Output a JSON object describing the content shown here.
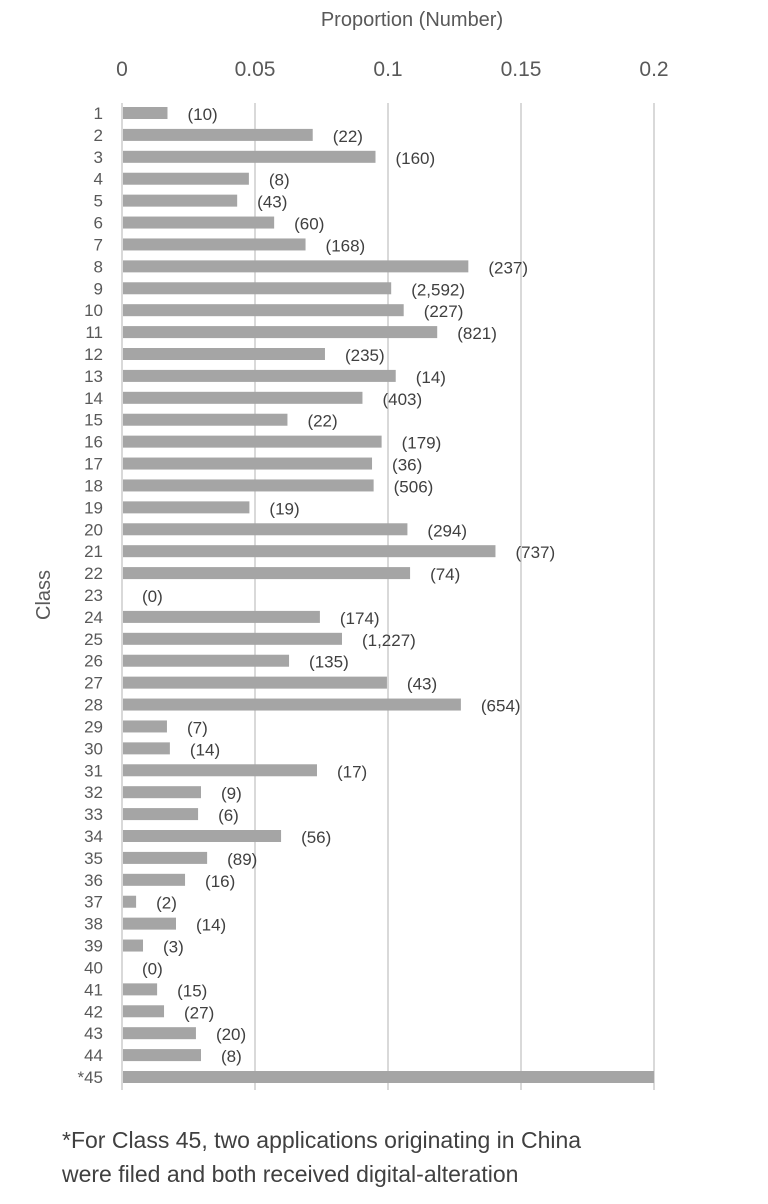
{
  "chart_data": {
    "type": "bar",
    "orientation": "horizontal",
    "title": "",
    "xlabel": "Proportion (Number)",
    "ylabel": "Class",
    "xlim": [
      0,
      0.2
    ],
    "xticks": [
      0,
      0.05,
      0.1,
      0.15,
      0.2
    ],
    "xtick_labels": [
      "0",
      "0.05",
      "0.1",
      "0.15",
      "0.2"
    ],
    "x_axis_position": "top",
    "grid": "vertical",
    "bar_color": "#a5a5a5",
    "categories": [
      "1",
      "2",
      "3",
      "4",
      "5",
      "6",
      "7",
      "8",
      "9",
      "10",
      "11",
      "12",
      "13",
      "14",
      "15",
      "16",
      "17",
      "18",
      "19",
      "20",
      "21",
      "22",
      "23",
      "24",
      "25",
      "26",
      "27",
      "28",
      "29",
      "30",
      "31",
      "32",
      "33",
      "34",
      "35",
      "36",
      "37",
      "38",
      "39",
      "40",
      "41",
      "42",
      "43",
      "44",
      "*45"
    ],
    "values": [
      0.0171,
      0.0717,
      0.0953,
      0.0477,
      0.0433,
      0.0572,
      0.069,
      0.1302,
      0.1012,
      0.1059,
      0.1185,
      0.0763,
      0.1029,
      0.0904,
      0.0622,
      0.0976,
      0.094,
      0.0946,
      0.0479,
      0.1073,
      0.1404,
      0.1083,
      0,
      0.0744,
      0.0827,
      0.0628,
      0.0996,
      0.1274,
      0.0169,
      0.018,
      0.0733,
      0.0297,
      0.0286,
      0.0598,
      0.032,
      0.0237,
      0.0053,
      0.0203,
      0.0079,
      0,
      0.0132,
      0.0158,
      0.0278,
      0.0297,
      0.2
    ],
    "data_labels": [
      "(10)",
      "(22)",
      "(160)",
      "(8)",
      "(43)",
      "(60)",
      "(168)",
      "(237)",
      "(2,592)",
      "(227)",
      "(821)",
      "(235)",
      "(14)",
      "(403)",
      "(22)",
      "(179)",
      "(36)",
      "(506)",
      "(19)",
      "(294)",
      "(737)",
      "(74)",
      "(0)",
      "(174)",
      "(1,227)",
      "(135)",
      "(43)",
      "(654)",
      "(7)",
      "(14)",
      "(17)",
      "(9)",
      "(6)",
      "(56)",
      "(89)",
      "(16)",
      "(2)",
      "(14)",
      "(3)",
      "(0)",
      "(15)",
      "(27)",
      "(20)",
      "(8)",
      ""
    ]
  },
  "footnote": {
    "line1": "*For Class 45, two applications originating in China",
    "line2": "were filed and both received digital-alteration"
  }
}
